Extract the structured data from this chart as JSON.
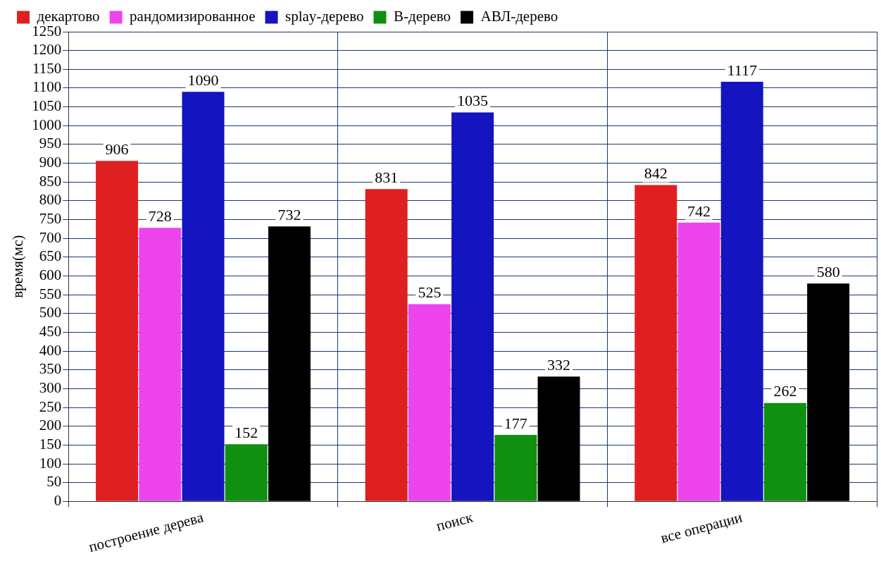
{
  "chart_data": {
    "type": "bar",
    "ylabel": "время(мс)",
    "categories": [
      "построение дерева",
      "поиск",
      "все операции"
    ],
    "series": [
      {
        "name": "декартово",
        "color": "#e02020",
        "values": [
          906,
          831,
          842
        ]
      },
      {
        "name": "рандомизированное",
        "color": "#ee44ee",
        "values": [
          728,
          525,
          742
        ]
      },
      {
        "name": "splay-дерево",
        "color": "#1414c0",
        "values": [
          1090,
          1035,
          1117
        ]
      },
      {
        "name": "B-дерево",
        "color": "#109010",
        "values": [
          152,
          177,
          262
        ]
      },
      {
        "name": "АВЛ-дерево",
        "color": "#000000",
        "values": [
          732,
          332,
          580
        ]
      }
    ],
    "ylim": [
      0,
      1250
    ],
    "yticks": [
      0,
      50,
      100,
      150,
      200,
      250,
      300,
      350,
      400,
      450,
      500,
      550,
      600,
      650,
      700,
      750,
      800,
      850,
      900,
      950,
      1000,
      1050,
      1100,
      1150,
      1200,
      1250
    ],
    "grid": true,
    "legend": "top",
    "data_labels": true
  }
}
